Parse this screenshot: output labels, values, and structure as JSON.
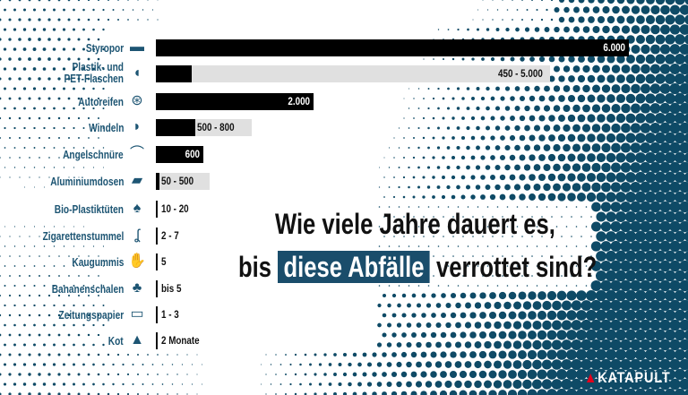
{
  "chart_data": {
    "type": "bar",
    "title": "Wie viele Jahre dauert es, bis diese Abfälle verrottet sind?",
    "title_parts": {
      "line1": "Wie viele Jahre dauert es,",
      "pre": "bis",
      "highlight": "diese Abfälle",
      "post": "verrottet sind?"
    },
    "xlim": [
      0,
      6000
    ],
    "grid": false,
    "unit": "Jahre",
    "categories": [
      "Styropor",
      "Plastik- und PET-Flaschen",
      "Autoreifen",
      "Windeln",
      "Angelschnüre",
      "Aluminiumdosen",
      "Bio-Plastiktüten",
      "Zigarettenstummel",
      "Kaugummis",
      "Bananenschalen",
      "Zeitungspapier",
      "Kot"
    ],
    "items": [
      {
        "label": "Styropor",
        "icon": "styrofoam-tray-icon",
        "min": 6000,
        "max": 6000,
        "value_label": "6.000"
      },
      {
        "label": "Plastik- und PET-Flaschen",
        "icon": "plastic-bottle-icon",
        "min": 450,
        "max": 5000,
        "value_label": "450 - 5.000"
      },
      {
        "label": "Autoreifen",
        "icon": "tire-icon",
        "min": 2000,
        "max": 2000,
        "value_label": "2.000"
      },
      {
        "label": "Windeln",
        "icon": "diaper-icon",
        "min": 500,
        "max": 800,
        "value_label": "500 - 800"
      },
      {
        "label": "Angelschnüre",
        "icon": "fishing-rod-icon",
        "min": 600,
        "max": 600,
        "value_label": "600"
      },
      {
        "label": "Aluminiumdosen",
        "icon": "can-icon",
        "min": 50,
        "max": 500,
        "value_label": "50 - 500"
      },
      {
        "label": "Bio-Plastiktüten",
        "icon": "plastic-bag-icon",
        "min": 10,
        "max": 20,
        "value_label": "10 - 20"
      },
      {
        "label": "Zigarettenstummel",
        "icon": "cigarette-butt-icon",
        "min": 2,
        "max": 7,
        "value_label": "2 - 7"
      },
      {
        "label": "Kaugummis",
        "icon": "chewing-gum-icon",
        "min": 5,
        "max": 5,
        "value_label": "5"
      },
      {
        "label": "Bananenschalen",
        "icon": "banana-peel-icon",
        "min": 5,
        "max": 5,
        "value_label": "bis 5"
      },
      {
        "label": "Zeitungspapier",
        "icon": "newspaper-icon",
        "min": 1,
        "max": 3,
        "value_label": "1 - 3"
      },
      {
        "label": "Kot",
        "icon": "poop-icon",
        "min": 0.17,
        "max": 0.17,
        "value_label": "2 Monate"
      }
    ],
    "colors": {
      "min_bar": "#000000",
      "range_bar": "#e0e0e0",
      "labels": "#1d5573",
      "highlight": "#1a4d6b",
      "halftone": "#0e4a66"
    }
  },
  "logo": {
    "text": "KATAPULT",
    "accent": "#e3001b"
  }
}
